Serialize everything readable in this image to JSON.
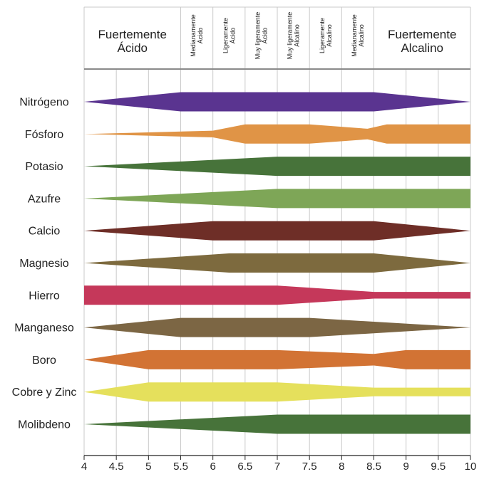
{
  "chart_data": {
    "type": "area",
    "title": "",
    "xlabel": "",
    "ylabel": "",
    "xlim": [
      4,
      10
    ],
    "grid": true,
    "x_ticks": [
      "4",
      "4.5",
      "5",
      "5.5",
      "6",
      "6.5",
      "7",
      "7.5",
      "8",
      "8.5",
      "9",
      "9.5",
      "10"
    ],
    "header_zones": [
      {
        "from": 4,
        "to": 5.5,
        "lines": [
          "Fuertemente",
          "Ácido"
        ],
        "size": "large"
      },
      {
        "from": 5.5,
        "to": 6,
        "lines": [
          "Medianamente",
          "Ácido"
        ],
        "size": "small"
      },
      {
        "from": 6,
        "to": 6.5,
        "lines": [
          "Ligeramente",
          "Ácido"
        ],
        "size": "small"
      },
      {
        "from": 6.5,
        "to": 7,
        "lines": [
          "Muy ligeramente",
          "Ácido"
        ],
        "size": "small"
      },
      {
        "from": 7,
        "to": 7.5,
        "lines": [
          "Muy ligeramente",
          "Alcalino"
        ],
        "size": "small"
      },
      {
        "from": 7.5,
        "to": 8,
        "lines": [
          "Ligeramente",
          "Alcalino"
        ],
        "size": "small"
      },
      {
        "from": 8,
        "to": 8.5,
        "lines": [
          "Medianamente",
          "Alcalino"
        ],
        "size": "small"
      },
      {
        "from": 8.5,
        "to": 10,
        "lines": [
          "Fuertemente",
          "Alcalino"
        ],
        "size": "large"
      }
    ],
    "series": [
      {
        "name": "Nitrógeno",
        "color": "#5a3490",
        "profile": [
          [
            4,
            0
          ],
          [
            5.5,
            1
          ],
          [
            8.5,
            1
          ],
          [
            10,
            0
          ]
        ]
      },
      {
        "name": "Fósforo",
        "color": "#e09446",
        "profile": [
          [
            4,
            0
          ],
          [
            6,
            0.35
          ],
          [
            6.5,
            1
          ],
          [
            7.5,
            1
          ],
          [
            8.4,
            0.55
          ],
          [
            8.7,
            1
          ],
          [
            10,
            1
          ]
        ]
      },
      {
        "name": "Potasio",
        "color": "#47733a",
        "profile": [
          [
            4,
            0
          ],
          [
            7,
            1
          ],
          [
            10,
            1
          ]
        ]
      },
      {
        "name": "Azufre",
        "color": "#7ea657",
        "profile": [
          [
            4,
            0
          ],
          [
            7,
            1
          ],
          [
            10,
            1
          ]
        ]
      },
      {
        "name": "Calcio",
        "color": "#6e2e27",
        "profile": [
          [
            4,
            0
          ],
          [
            6,
            1
          ],
          [
            8.5,
            1
          ],
          [
            10,
            0
          ]
        ]
      },
      {
        "name": "Magnesio",
        "color": "#7d6a3e",
        "profile": [
          [
            4,
            0
          ],
          [
            6.25,
            1
          ],
          [
            8.5,
            1
          ],
          [
            10,
            0
          ]
        ]
      },
      {
        "name": "Hierro",
        "color": "#c5385a",
        "profile": [
          [
            4,
            1
          ],
          [
            7,
            1
          ],
          [
            8.5,
            0.35
          ],
          [
            10,
            0.35
          ]
        ]
      },
      {
        "name": "Manganeso",
        "color": "#7c6644",
        "profile": [
          [
            4,
            0
          ],
          [
            5.5,
            1
          ],
          [
            7.5,
            1
          ],
          [
            10,
            0
          ]
        ]
      },
      {
        "name": "Boro",
        "color": "#d27334",
        "profile": [
          [
            4,
            0
          ],
          [
            5,
            1
          ],
          [
            7,
            1
          ],
          [
            8.5,
            0.6
          ],
          [
            9,
            1
          ],
          [
            10,
            1
          ]
        ]
      },
      {
        "name": "Cobre y Zinc",
        "color": "#e5e05c",
        "profile": [
          [
            4,
            0
          ],
          [
            5,
            1
          ],
          [
            7,
            1
          ],
          [
            8.5,
            0.45
          ],
          [
            10,
            0.45
          ]
        ]
      },
      {
        "name": "Molibdeno",
        "color": "#47733a",
        "profile": [
          [
            4,
            0
          ],
          [
            7,
            1
          ],
          [
            10,
            1
          ]
        ]
      }
    ]
  }
}
